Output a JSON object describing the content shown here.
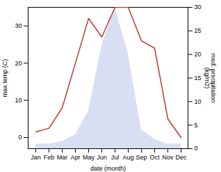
{
  "chart_data": {
    "type": "line",
    "categories": [
      "Jan",
      "Feb",
      "Mar",
      "Apr",
      "May",
      "Jun",
      "Jul",
      "Aug",
      "Sep",
      "Oct",
      "Nov",
      "Dec"
    ],
    "series": [
      {
        "type": "area",
        "axis": "y2",
        "color": "#b8c4e8",
        "values": [
          1.0,
          1.0,
          1.5,
          3.0,
          8.0,
          22.0,
          30.0,
          20.0,
          4.0,
          2.0,
          1.0,
          1.0
        ]
      },
      {
        "type": "line",
        "color": "#c0392b",
        "values": [
          1.5,
          2.5,
          8.0,
          20.0,
          32.0,
          27.0,
          35.0,
          35.0,
          26.0,
          24.0,
          5.0,
          0.0
        ]
      }
    ],
    "xlabel": "date (month)",
    "ylabel": "max temp (C)",
    "y2label": "med. precipitation\n(kg/m2)",
    "ylim": [
      -3,
      35
    ],
    "yticks": [
      0,
      10,
      20,
      30
    ],
    "y2lim": [
      0,
      30
    ],
    "y2ticks": [
      0,
      5,
      10,
      15,
      20,
      25,
      30
    ],
    "grid": false
  }
}
